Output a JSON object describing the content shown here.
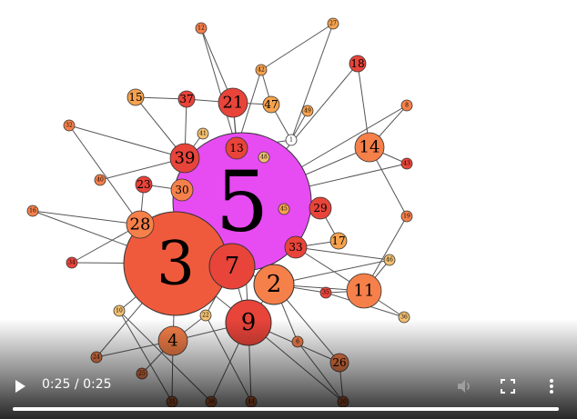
{
  "player": {
    "current_time": "0:25",
    "separator": " / ",
    "duration": "0:25",
    "progress": 1.0,
    "icons": {
      "play": "play-icon",
      "mute": "volume-icon",
      "fullscreen": "fullscreen-icon",
      "more": "more-vert-icon"
    },
    "colors": {
      "controls": "#ffffff",
      "muted_icon": "#9e9e9e"
    }
  },
  "graph": {
    "colors": {
      "highlight": "#e74bf2",
      "dark_red": "#e8443a",
      "red": "#f05a3c",
      "orange": "#f6804a",
      "light_orange": "#f7a24e",
      "pale": "#f3c071",
      "edge": "#555555",
      "white": "#ffffff"
    },
    "nodes": [
      {
        "id": "5",
        "c": "highlight"
      },
      {
        "id": "3",
        "c": "red"
      },
      {
        "id": "7",
        "c": "dark_red"
      },
      {
        "id": "9",
        "c": "dark_red"
      },
      {
        "id": "2",
        "c": "orange"
      },
      {
        "id": "11",
        "c": "orange"
      },
      {
        "id": "4",
        "c": "orange"
      },
      {
        "id": "14",
        "c": "orange"
      },
      {
        "id": "21",
        "c": "dark_red"
      },
      {
        "id": "39",
        "c": "dark_red"
      },
      {
        "id": "13",
        "c": "dark_red"
      },
      {
        "id": "28",
        "c": "orange"
      },
      {
        "id": "30",
        "c": "orange"
      },
      {
        "id": "29",
        "c": "dark_red"
      },
      {
        "id": "33",
        "c": "dark_red"
      },
      {
        "id": "26",
        "c": "orange"
      },
      {
        "id": "37",
        "c": "dark_red"
      },
      {
        "id": "15",
        "c": "light_orange"
      },
      {
        "id": "23",
        "c": "dark_red"
      },
      {
        "id": "47",
        "c": "light_orange"
      },
      {
        "id": "18",
        "c": "dark_red"
      },
      {
        "id": "17",
        "c": "light_orange"
      },
      {
        "id": "27",
        "c": "light_orange"
      },
      {
        "id": "12",
        "c": "orange"
      },
      {
        "id": "42",
        "c": "light_orange"
      },
      {
        "id": "49",
        "c": "light_orange"
      },
      {
        "id": "41",
        "c": "pale"
      },
      {
        "id": "48",
        "c": "pale"
      },
      {
        "id": "45",
        "c": "light_orange"
      },
      {
        "id": "40",
        "c": "orange"
      },
      {
        "id": "16",
        "c": "orange"
      },
      {
        "id": "34",
        "c": "dark_red"
      },
      {
        "id": "10",
        "c": "pale"
      },
      {
        "id": "22",
        "c": "pale"
      },
      {
        "id": "24",
        "c": "orange"
      },
      {
        "id": "25",
        "c": "orange"
      },
      {
        "id": "6",
        "c": "orange"
      },
      {
        "id": "35",
        "c": "dark_red"
      },
      {
        "id": "36",
        "c": "pale"
      },
      {
        "id": "46",
        "c": "pale"
      },
      {
        "id": "19",
        "c": "orange"
      },
      {
        "id": "43",
        "c": "dark_red"
      },
      {
        "id": "8",
        "c": "orange"
      },
      {
        "id": "1",
        "c": "white"
      },
      {
        "id": "32",
        "c": "orange"
      },
      {
        "id": "31",
        "c": "orange"
      },
      {
        "id": "38",
        "c": "orange"
      },
      {
        "id": "44",
        "c": "orange"
      },
      {
        "id": "20",
        "c": "orange"
      }
    ]
  }
}
